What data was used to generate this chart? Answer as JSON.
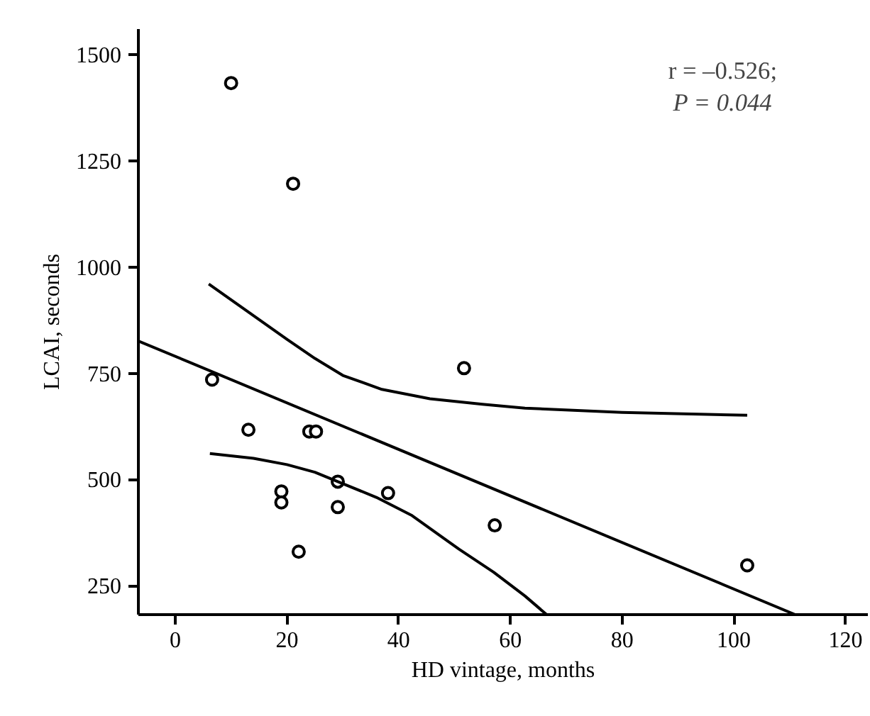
{
  "chart_data": {
    "type": "scatter",
    "xlabel": "HD vintage, months",
    "ylabel": "LCAI, seconds",
    "xlim": [
      -6.6,
      124
    ],
    "ylim": [
      182,
      1560
    ],
    "xticks": [
      0,
      20,
      40,
      60,
      80,
      100,
      120
    ],
    "yticks": [
      250,
      500,
      750,
      1000,
      1250,
      1500
    ],
    "grid": false,
    "marker": "circle",
    "annotations": [
      "r = –0.526;",
      "P = 0.044"
    ],
    "series": [
      {
        "color": "#000000",
        "x": [
          10.0,
          21.1,
          6.6,
          13.1,
          24.0,
          25.2,
          19.0,
          19.0,
          29.1,
          29.1,
          22.1,
          38.1,
          51.7,
          57.2,
          102.4
        ],
        "values": [
          1433,
          1196,
          735,
          617,
          613,
          613,
          472,
          446,
          495,
          435,
          330,
          468,
          762,
          392,
          298
        ]
      },
      {
        "type": "line",
        "color": "#000000",
        "marker": "none",
        "x": [
          -6.6,
          111
        ],
        "values": [
          826,
          182
        ]
      },
      {
        "type": "line",
        "color": "#000000",
        "marker": "none",
        "x": [
          6,
          13,
          20,
          25,
          30,
          37,
          45.6,
          55,
          62.6,
          80,
          102.4
        ],
        "values": [
          960,
          895,
          830,
          785,
          745,
          712,
          690,
          677,
          668,
          658,
          651
        ]
      },
      {
        "type": "line",
        "color": "#000000",
        "marker": "none",
        "x": [
          6.2,
          14,
          20,
          25,
          29.1,
          36,
          42.4,
          50.8,
          57,
          62.6,
          66.5
        ],
        "values": [
          561,
          550,
          535,
          517,
          495,
          458,
          415,
          336,
          282,
          226,
          182
        ]
      }
    ]
  }
}
